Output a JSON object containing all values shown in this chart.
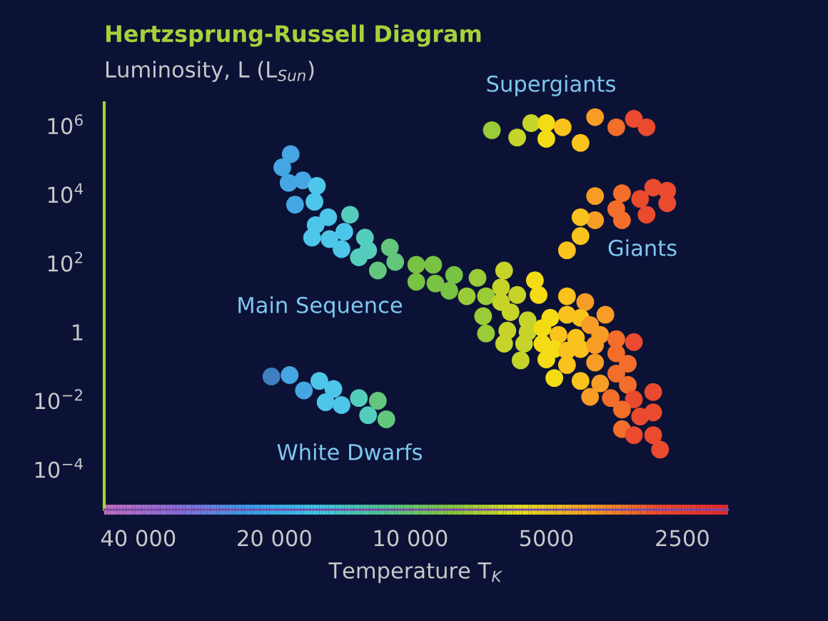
{
  "chart_data": {
    "type": "scatter",
    "title": "Hertzsprung-Russell Diagram",
    "ylabel": "Luminosity, L (L$_{Sun}$)",
    "xlabel": "Temperature T$_{K}$",
    "log": "xy",
    "marker": "circle",
    "xlim": [
      47600,
      1980
    ],
    "ylim": [
      6.8e-06,
      4700000.0
    ],
    "xticks": [
      {
        "value": 40000,
        "label": "40 000"
      },
      {
        "value": 20000,
        "label": "20 000"
      },
      {
        "value": 10000,
        "label": "10 000"
      },
      {
        "value": 5000,
        "label": "5000"
      },
      {
        "value": 2500,
        "label": "2500"
      }
    ],
    "yticks": [
      {
        "value": 1000000.0,
        "label": "10$^{6}$"
      },
      {
        "value": 10000.0,
        "label": "10$^{4}$"
      },
      {
        "value": 100,
        "label": "10$^{2}$"
      },
      1,
      {
        "value": 0.01,
        "label": "10$^{−2}$"
      },
      {
        "value": 0.0001,
        "label": "10$^{−4}$"
      }
    ],
    "series": [
      {
        "name": "Main Sequence",
        "x": [
          18400,
          19200,
          18600,
          17300,
          16100,
          18000,
          16300,
          15200,
          16200,
          13600,
          16500,
          15100,
          14000,
          14200,
          12600,
          12400,
          13000,
          11800,
          11100,
          10800,
          9700,
          8900,
          9700,
          8800,
          8000,
          8200,
          7500,
          7100,
          6200,
          6300,
          6800,
          6300,
          5800,
          5300,
          5200,
          4500,
          4100,
          3700,
          6900,
          6000,
          5500,
          4900,
          4500,
          4200,
          4000,
          6100,
          5500,
          5100,
          4700,
          4300,
          3800,
          3500,
          3200,
          6800,
          6200,
          5600,
          5100,
          4800,
          4500,
          4200,
          3900,
          3500,
          5700,
          5000,
          4500,
          3900,
          3300,
          3500,
          4800,
          4200,
          3800,
          3300,
          4000,
          3600,
          3200,
          2900,
          3400,
          3100,
          2900,
          3400,
          3200,
          2900,
          2800
        ],
        "values": [
          150000.0,
          62000.0,
          22000.0,
          26000.0,
          18000.0,
          5100.0,
          6200.0,
          2200.0,
          1300.0,
          2600.0,
          560,
          510,
          830,
          260,
          560,
          240,
          150,
          62,
          290,
          110,
          91,
          91,
          29,
          26,
          46,
          16,
          11,
          38,
          62,
          20,
          11,
          7.5,
          12,
          32,
          12,
          11,
          7.5,
          3.2,
          2.9,
          3.8,
          2.2,
          2.6,
          3.2,
          2.6,
          1.6,
          1.1,
          1,
          1.3,
          0.83,
          0.68,
          0.83,
          0.62,
          0.51,
          0.91,
          0.46,
          0.46,
          0.46,
          0.32,
          0.29,
          0.32,
          0.42,
          0.24,
          0.15,
          0.16,
          0.11,
          0.13,
          0.12,
          0.062,
          0.046,
          0.038,
          0.032,
          0.029,
          0.013,
          0.012,
          0.011,
          0.018,
          0.0056,
          0.0035,
          0.0046,
          0.0015,
          0.001,
          0.001,
          0.00038
        ],
        "colors": [
          "#45a6e3",
          "#45a6e3",
          "#45a6e3",
          "#45a6e3",
          "#4dc6ea",
          "#45a6e3",
          "#4dc6ea",
          "#4dc6ea",
          "#4dc6ea",
          "#55cdbd",
          "#4dc6ea",
          "#4dc6ea",
          "#4dc6ea",
          "#4dc6ea",
          "#55cdbd",
          "#55cdbd",
          "#55cdbd",
          "#62c77c",
          "#62c77c",
          "#62c77c",
          "#78c244",
          "#78c244",
          "#78c244",
          "#78c244",
          "#78c244",
          "#78c244",
          "#9acb38",
          "#9acb38",
          "#c6d42a",
          "#c6d42a",
          "#9acb38",
          "#c6d42a",
          "#c6d42a",
          "#f4dc14",
          "#f4dc14",
          "#f9c21d",
          "#f79c25",
          "#f79c25",
          "#9acb38",
          "#c6d42a",
          "#c6d42a",
          "#f4dc14",
          "#f9c21d",
          "#f9c21d",
          "#f79c25",
          "#c6d42a",
          "#c6d42a",
          "#f4dc14",
          "#f9c21d",
          "#f9c21d",
          "#f79c25",
          "#f26e2a",
          "#ea4a2d",
          "#9acb38",
          "#c6d42a",
          "#c6d42a",
          "#f4dc14",
          "#f4dc14",
          "#f9c21d",
          "#f9c21d",
          "#f79c25",
          "#f26e2a",
          "#c6d42a",
          "#f4dc14",
          "#f9c21d",
          "#f79c25",
          "#f26e2a",
          "#f26e2a",
          "#f4dc14",
          "#f9c21d",
          "#f79c25",
          "#f26e2a",
          "#f79c25",
          "#f26e2a",
          "#ea4a2d",
          "#ea4a2d",
          "#f26e2a",
          "#ea4a2d",
          "#ea4a2d",
          "#f26e2a",
          "#ea4a2d",
          "#ea4a2d",
          "#ea4a2d"
        ]
      },
      {
        "name": "Supergiants",
        "x": [
          6600,
          5800,
          5400,
          5000,
          5000,
          4600,
          4200,
          3900,
          3500,
          3200,
          3000
        ],
        "values": [
          750000.0,
          460000.0,
          1200000.0,
          1200000.0,
          420000.0,
          910000.0,
          320000.0,
          1800000.0,
          910000.0,
          1600000.0,
          910000.0
        ],
        "colors": [
          "#9acb38",
          "#c6d42a",
          "#c6d42a",
          "#f4dc14",
          "#f4dc14",
          "#f9c21d",
          "#f9c21d",
          "#f79c25",
          "#f26e2a",
          "#ea4a2d",
          "#ea4a2d"
        ]
      },
      {
        "name": "Giants",
        "x": [
          3900,
          3500,
          3400,
          3100,
          2900,
          2700,
          2700,
          3000,
          3400,
          3900,
          4200,
          4200,
          4500
        ],
        "values": [
          9100,
          3800,
          11000,
          7500,
          16000,
          13000,
          5600,
          2600,
          1800,
          1800,
          2200,
          620,
          240
        ],
        "colors": [
          "#f79c25",
          "#f26e2a",
          "#f26e2a",
          "#ea4a2d",
          "#ea4a2d",
          "#ea4a2d",
          "#ea4a2d",
          "#ea4a2d",
          "#f26e2a",
          "#f79c25",
          "#f9c21d",
          "#f9c21d",
          "#f9c21d"
        ]
      },
      {
        "name": "White Dwarfs",
        "x": [
          20300,
          18500,
          17200,
          15900,
          14800,
          15400,
          14200,
          13000,
          11800,
          12400,
          11300
        ],
        "values": [
          0.051,
          0.056,
          0.02,
          0.038,
          0.022,
          0.0091,
          0.0075,
          0.012,
          0.01,
          0.0038,
          0.0029
        ],
        "colors": [
          "#3f7fc0",
          "#45a6e3",
          "#45a6e3",
          "#4dc6ea",
          "#4dc6ea",
          "#4dc6ea",
          "#4dc6ea",
          "#55cdbd",
          "#62c77c",
          "#55cdbd",
          "#62c77c"
        ]
      }
    ]
  }
}
